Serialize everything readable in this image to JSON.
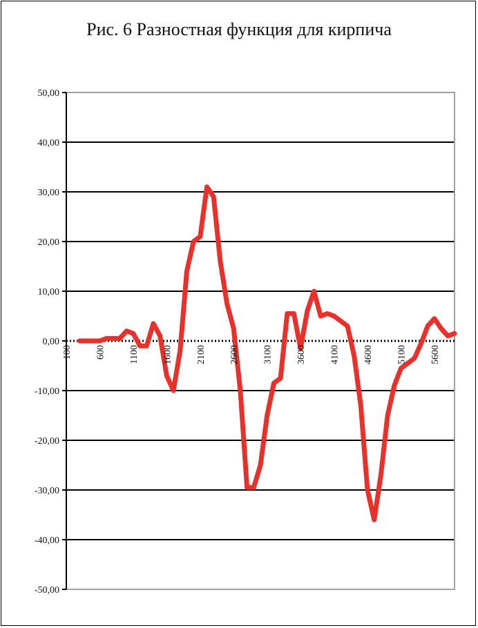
{
  "chart_data": {
    "type": "line",
    "title": "Рис. 6 Разностная функция для кирпича",
    "xlabel": "",
    "ylabel": "",
    "ylim": [
      -50,
      50
    ],
    "xlim": [
      100,
      5900
    ],
    "y_ticks": [
      50,
      40,
      30,
      20,
      10,
      0,
      -10,
      -20,
      -30,
      -40,
      -50
    ],
    "y_tick_labels": [
      "50,00",
      "40,00",
      "30,00",
      "20,00",
      "10,00",
      "0,00",
      "-10,00",
      "-20,00",
      "-30,00",
      "-40,00",
      "-50,00"
    ],
    "x_tick_labels": [
      "100",
      "600",
      "1100",
      "1600",
      "2100",
      "2600",
      "3100",
      "3600",
      "4100",
      "4600",
      "5100",
      "5600"
    ],
    "x_ticks": [
      100,
      600,
      1100,
      1600,
      2100,
      2600,
      3100,
      3600,
      4100,
      4600,
      5100,
      5600
    ],
    "grid": true,
    "colors": {
      "line": "#e8312a",
      "grid": "#000000",
      "axis": "#000000",
      "frame": "#a0a0a8"
    },
    "series": [
      {
        "x": [
          300,
          400,
          500,
          600,
          700,
          800,
          900,
          1000,
          1100,
          1200,
          1300,
          1400,
          1500,
          1600,
          1700,
          1800,
          1900,
          2000,
          2100,
          2200,
          2300,
          2400,
          2500,
          2600,
          2700,
          2800,
          2900,
          3000,
          3100,
          3200,
          3300,
          3400,
          3500,
          3600,
          3700,
          3800,
          3900,
          4000,
          4100,
          4200,
          4300,
          4400,
          4500,
          4600,
          4700,
          4800,
          4900,
          5000,
          5100,
          5200,
          5300,
          5400,
          5500,
          5600,
          5700,
          5800,
          5900
        ],
        "y": [
          0,
          0,
          0,
          0,
          0.5,
          0.5,
          0.5,
          2,
          1.5,
          -1,
          -1,
          3.5,
          1,
          -7,
          -10,
          -2,
          14,
          20,
          21,
          31,
          29,
          16,
          7.5,
          2.5,
          -10,
          -29.5,
          -29.5,
          -25,
          -15,
          -8.5,
          -7.5,
          5.5,
          5.5,
          -1.5,
          6,
          10,
          5,
          5.5,
          5,
          4,
          3,
          -3,
          -13,
          -30,
          -36,
          -27,
          -15,
          -9,
          -5.5,
          -4.5,
          -3.5,
          -0.5,
          3,
          4.5,
          2.5,
          1,
          1.5
        ]
      }
    ]
  }
}
